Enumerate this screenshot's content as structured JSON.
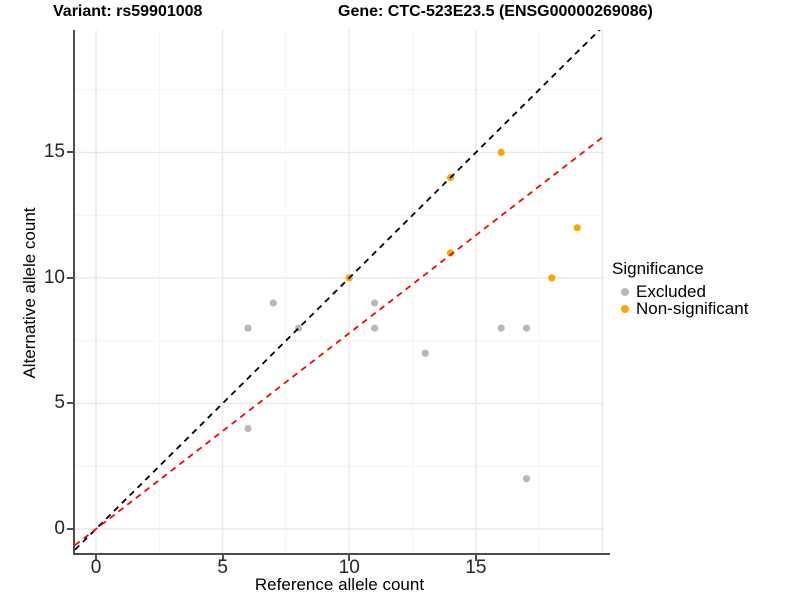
{
  "chart_data": {
    "type": "scatter",
    "title_left": "Variant: rs59901008",
    "title_right": "Gene: CTC-523E23.5 (ENSG00000269086)",
    "xlabel": "Reference allele count",
    "ylabel": "Alternative allele count",
    "xlim": [
      -0.83,
      20.06
    ],
    "ylim": [
      -0.96,
      19.88
    ],
    "x_ticks": [
      0,
      5,
      10,
      15
    ],
    "y_ticks": [
      0,
      5,
      10,
      15
    ],
    "x_major_gridlines": [
      0,
      5,
      10,
      15,
      20
    ],
    "x_minor_gridlines": [
      2.5,
      7.5,
      12.5,
      17.5
    ],
    "y_major_gridlines": [
      0,
      5,
      10,
      15
    ],
    "y_minor_gridlines": [
      2.5,
      7.5,
      12.5,
      17.5
    ],
    "grid": true,
    "legend_position": "right",
    "series": [
      {
        "name": "Excluded",
        "color": "#b8b8b8",
        "points": [
          [
            6,
            4
          ],
          [
            6,
            8
          ],
          [
            7,
            9
          ],
          [
            8,
            8
          ],
          [
            11,
            8
          ],
          [
            11,
            9
          ],
          [
            13,
            7
          ],
          [
            16,
            8
          ],
          [
            17,
            8
          ],
          [
            17,
            2
          ]
        ]
      },
      {
        "name": "Non-significant",
        "color": "#FFA500",
        "points": [
          [
            10,
            10
          ],
          [
            14,
            11
          ],
          [
            14,
            14
          ],
          [
            16,
            15
          ],
          [
            18,
            10
          ],
          [
            19,
            12
          ]
        ]
      }
    ],
    "lines": [
      {
        "name": "identity",
        "slope": 1.0,
        "intercept": 0,
        "color": "#000000",
        "dash": "6 5"
      },
      {
        "name": "expected-ratio",
        "slope": 0.78,
        "intercept": 0,
        "color": "#FF0000",
        "dash": "6 5"
      }
    ]
  },
  "legend": {
    "title": "Significance",
    "items": [
      {
        "label": "Excluded",
        "color": "#b8b8b8"
      },
      {
        "label": "Non-significant",
        "color": "#FFA500"
      }
    ]
  },
  "colors": {
    "axis_line": "#4d4d4d",
    "major_grid": "#e9e9e9",
    "minor_grid": "#f4f4f4",
    "tick_text": "#262626",
    "point_radius": 3.6
  }
}
